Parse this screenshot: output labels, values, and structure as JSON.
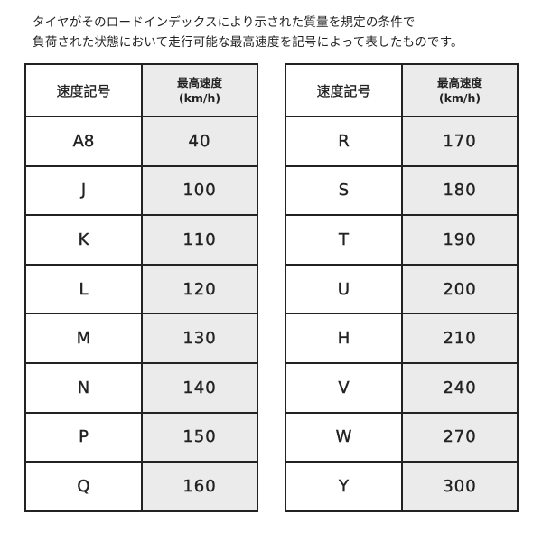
{
  "intro": {
    "line1": "タイヤがそのロードインデックスにより示された質量を規定の条件で",
    "line2": "負荷された状態において走行可能な最高速度を記号によって表したものです。"
  },
  "headers": {
    "symbol": "速度記号",
    "speed": "最高速度",
    "unit": "(km/h)"
  },
  "left_table": [
    {
      "symbol": "A8",
      "speed": "40"
    },
    {
      "symbol": "J",
      "speed": "100"
    },
    {
      "symbol": "K",
      "speed": "110"
    },
    {
      "symbol": "L",
      "speed": "120"
    },
    {
      "symbol": "M",
      "speed": "130"
    },
    {
      "symbol": "N",
      "speed": "140"
    },
    {
      "symbol": "P",
      "speed": "150"
    },
    {
      "symbol": "Q",
      "speed": "160"
    }
  ],
  "right_table": [
    {
      "symbol": "R",
      "speed": "170"
    },
    {
      "symbol": "S",
      "speed": "180"
    },
    {
      "symbol": "T",
      "speed": "190"
    },
    {
      "symbol": "U",
      "speed": "200"
    },
    {
      "symbol": "H",
      "speed": "210"
    },
    {
      "symbol": "V",
      "speed": "240"
    },
    {
      "symbol": "W",
      "speed": "270"
    },
    {
      "symbol": "Y",
      "speed": "300"
    }
  ],
  "colors": {
    "border": "#222222",
    "speed_fill": "#ebebeb"
  }
}
